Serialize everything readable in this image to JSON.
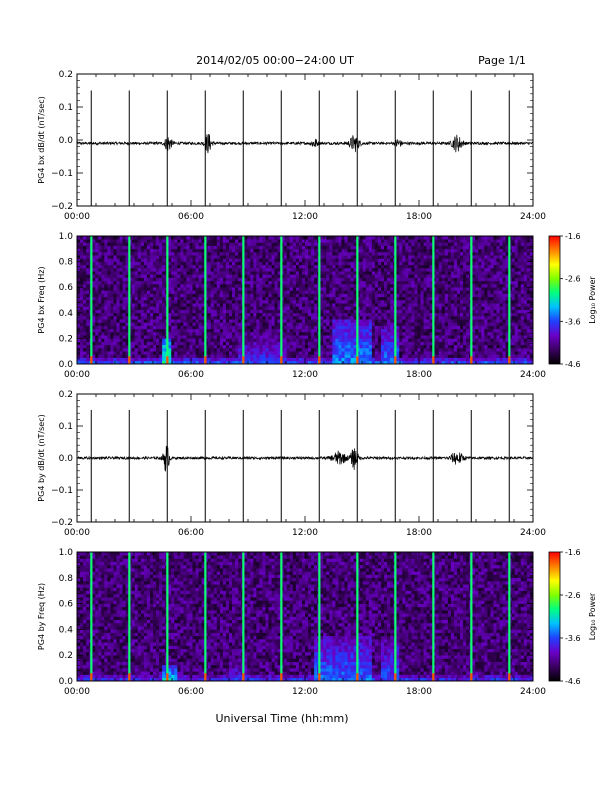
{
  "header": {
    "title": "2014/02/05  00:00−24:00 UT",
    "page_label": "Page 1/1"
  },
  "footer": {
    "xlabel": "Universal Time (hh:mm)"
  },
  "colors": {
    "trace": "#000000",
    "spectrogram_background": "#2a0a3a",
    "colormap": [
      "#000000",
      "#3a0060",
      "#6a00c8",
      "#2040ff",
      "#00c0ff",
      "#00ff80",
      "#80ff00",
      "#ffff00",
      "#ff8000",
      "#ff0000"
    ]
  },
  "chart_data": [
    {
      "id": "bx-waveform",
      "type": "line",
      "title": "",
      "xlabel": "",
      "ylabel": "PG4 bx dB/dt (nT/sec)",
      "xlim": [
        0,
        24
      ],
      "ylim": [
        -0.2,
        0.2
      ],
      "x_ticks": [
        "00:00",
        "06:00",
        "12:00",
        "18:00",
        "24:00"
      ],
      "y_ticks": [
        "0.2",
        "0.1",
        "0.0",
        "−0.1",
        "−0.2"
      ],
      "baseline": -0.01,
      "noise_amplitude": 0.004,
      "spike_hours": [
        0.75,
        2.75,
        4.75,
        6.75,
        8.75,
        10.75,
        12.75,
        14.75,
        16.75,
        18.75,
        20.75,
        22.75
      ],
      "spike_max": 0.15,
      "spike_min": -0.2,
      "activity_bursts": [
        {
          "center_hour": 4.8,
          "width_hours": 0.35,
          "amplitude": 0.025
        },
        {
          "center_hour": 6.9,
          "width_hours": 0.35,
          "amplitude": 0.03
        },
        {
          "center_hour": 12.5,
          "width_hours": 0.3,
          "amplitude": 0.015
        },
        {
          "center_hour": 14.6,
          "width_hours": 0.5,
          "amplitude": 0.025
        },
        {
          "center_hour": 16.9,
          "width_hours": 0.3,
          "amplitude": 0.015
        },
        {
          "center_hour": 20.0,
          "width_hours": 0.5,
          "amplitude": 0.025
        }
      ]
    },
    {
      "id": "bx-spectrogram",
      "type": "heatmap",
      "title": "",
      "xlabel": "",
      "ylabel": "PG4 bx Freq (Hz)",
      "xlim": [
        0,
        24
      ],
      "ylim": [
        0,
        1.0
      ],
      "x_ticks": [
        "00:00",
        "06:00",
        "12:00",
        "18:00",
        "24:00"
      ],
      "y_ticks": [
        "1.0",
        "0.8",
        "0.6",
        "0.4",
        "0.2",
        "0.0"
      ],
      "colorbar_label": "Log₁₀ Power",
      "colorbar_range": [
        -4.6,
        -1.6
      ],
      "colorbar_ticks": [
        "-1.6",
        "-2.6",
        "-3.6",
        "-4.6"
      ],
      "background_power": -4.2,
      "spike_hours": [
        0.75,
        2.75,
        4.75,
        6.75,
        8.75,
        10.75,
        12.75,
        14.75,
        16.75,
        18.75,
        20.75,
        22.75
      ],
      "spike_power": -2.9,
      "activity_regions": [
        {
          "start_hour": 4.5,
          "end_hour": 5.0,
          "max_freq": 0.2,
          "power": -3.0
        },
        {
          "start_hour": 8.5,
          "end_hour": 11.0,
          "max_freq": 0.25,
          "power": -3.7
        },
        {
          "start_hour": 13.5,
          "end_hour": 15.5,
          "max_freq": 0.35,
          "power": -3.4
        },
        {
          "start_hour": 16.0,
          "end_hour": 17.0,
          "max_freq": 0.3,
          "power": -3.5
        },
        {
          "start_hour": 0,
          "end_hour": 24,
          "max_freq": 0.05,
          "power": -3.5
        }
      ]
    },
    {
      "id": "by-waveform",
      "type": "line",
      "title": "",
      "xlabel": "",
      "ylabel": "PG4 by dB/dt (nT/sec)",
      "xlim": [
        0,
        24
      ],
      "ylim": [
        -0.2,
        0.2
      ],
      "x_ticks": [
        "00:00",
        "06:00",
        "12:00",
        "18:00",
        "24:00"
      ],
      "y_ticks": [
        "0.2",
        "0.1",
        "0.0",
        "−0.1",
        "−0.2"
      ],
      "baseline": 0.0,
      "noise_amplitude": 0.004,
      "spike_hours": [
        0.75,
        2.75,
        4.75,
        6.75,
        8.75,
        10.75,
        12.75,
        14.75,
        16.75,
        18.75,
        20.75,
        22.75
      ],
      "spike_max": 0.15,
      "spike_min": -0.2,
      "activity_bursts": [
        {
          "center_hour": 4.7,
          "width_hours": 0.3,
          "amplitude": 0.045
        },
        {
          "center_hour": 13.8,
          "width_hours": 0.7,
          "amplitude": 0.02
        },
        {
          "center_hour": 14.6,
          "width_hours": 0.35,
          "amplitude": 0.035
        },
        {
          "center_hour": 20.0,
          "width_hours": 0.6,
          "amplitude": 0.02
        }
      ]
    },
    {
      "id": "by-spectrogram",
      "type": "heatmap",
      "title": "",
      "xlabel": "",
      "ylabel": "PG4 by Freq (Hz)",
      "xlim": [
        0,
        24
      ],
      "ylim": [
        0,
        1.0
      ],
      "x_ticks": [
        "00:00",
        "06:00",
        "12:00",
        "18:00",
        "24:00"
      ],
      "y_ticks": [
        "1.0",
        "0.8",
        "0.6",
        "0.4",
        "0.2",
        "0.0"
      ],
      "colorbar_label": "Log₁₀ Power",
      "colorbar_range": [
        -4.6,
        -1.6
      ],
      "colorbar_ticks": [
        "-1.6",
        "-2.6",
        "-3.6",
        "-4.6"
      ],
      "background_power": -4.2,
      "spike_hours": [
        0.75,
        2.75,
        4.75,
        6.75,
        8.75,
        10.75,
        12.75,
        14.75,
        16.75,
        18.75,
        20.75,
        22.75
      ],
      "spike_power": -2.9,
      "activity_regions": [
        {
          "start_hour": 4.4,
          "end_hour": 5.2,
          "max_freq": 0.12,
          "power": -3.2
        },
        {
          "start_hour": 8.0,
          "end_hour": 9.0,
          "max_freq": 0.25,
          "power": -3.8
        },
        {
          "start_hour": 12.5,
          "end_hour": 15.5,
          "max_freq": 0.35,
          "power": -3.5
        },
        {
          "start_hour": 16.0,
          "end_hour": 17.0,
          "max_freq": 0.35,
          "power": -3.6
        },
        {
          "start_hour": 0,
          "end_hour": 24,
          "max_freq": 0.05,
          "power": -3.6
        }
      ]
    }
  ]
}
